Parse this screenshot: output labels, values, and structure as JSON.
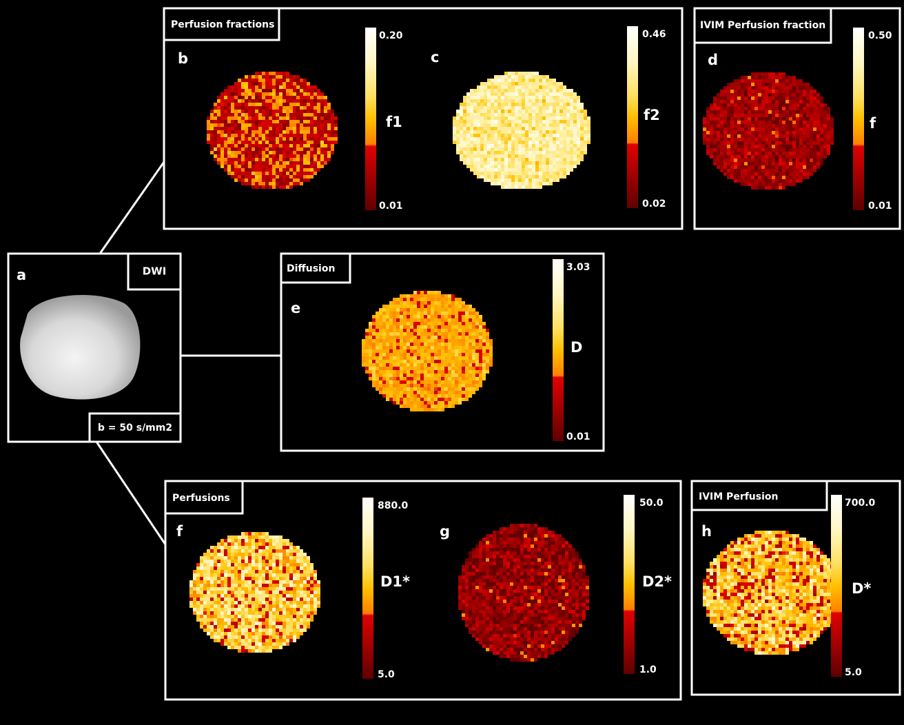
{
  "dwi": {
    "letter": "a",
    "title": "DWI",
    "b_value": "b = 50 s/mm2"
  },
  "boxes": [
    {
      "title": "Perfusion fractions"
    },
    {
      "title": "IVIM Perfusion fraction"
    },
    {
      "title": "Diffusion"
    },
    {
      "title": "Perfusions"
    },
    {
      "title": "IVIM Perfusion"
    }
  ],
  "maps": [
    {
      "letter": "b",
      "param": "f1",
      "max": "0.20",
      "min": "0.01"
    },
    {
      "letter": "c",
      "param": "f2",
      "max": "0.46",
      "min": "0.02"
    },
    {
      "letter": "d",
      "param": "f",
      "max": "0.50",
      "min": "0.01"
    },
    {
      "letter": "e",
      "param": "D",
      "max": "3.03",
      "min": "0.01"
    },
    {
      "letter": "f",
      "param": "D1*",
      "max": "880.0",
      "min": "5.0"
    },
    {
      "letter": "g",
      "param": "D2*",
      "max": "50.0",
      "min": "1.0"
    },
    {
      "letter": "h",
      "param": "D*",
      "max": "700.0",
      "min": "5.0"
    }
  ]
}
